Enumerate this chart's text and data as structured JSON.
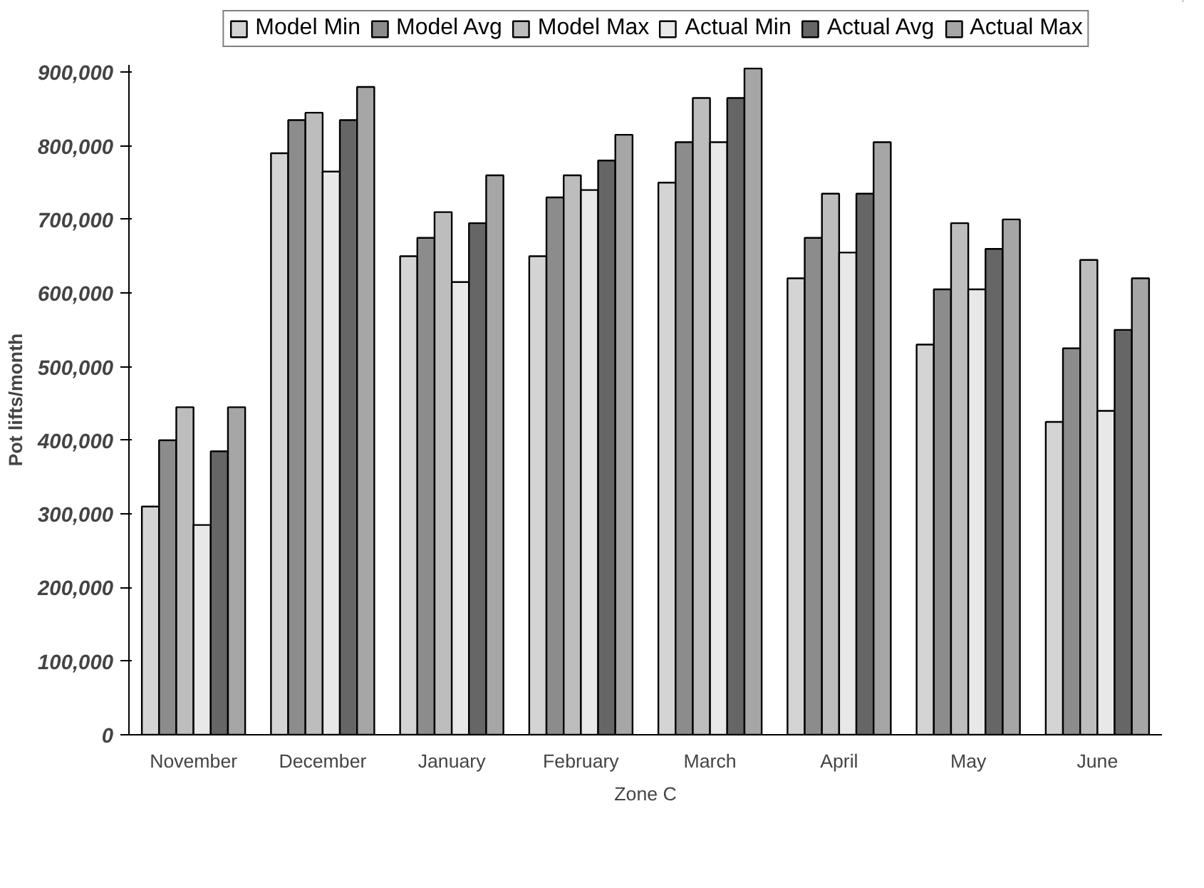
{
  "chart_data": {
    "type": "bar",
    "xlabel": "Zone C",
    "ylabel": "Pot lifts/month",
    "categories": [
      "November",
      "December",
      "January",
      "February",
      "March",
      "April",
      "May",
      "June"
    ],
    "series": [
      {
        "name": "Model Min",
        "color": "#d4d4d4",
        "values": [
          310000,
          790000,
          650000,
          650000,
          750000,
          620000,
          530000,
          425000
        ]
      },
      {
        "name": "Model Avg",
        "color": "#8c8c8c",
        "values": [
          400000,
          835000,
          675000,
          730000,
          805000,
          675000,
          605000,
          525000
        ]
      },
      {
        "name": "Model Max",
        "color": "#bdbdbd",
        "values": [
          445000,
          845000,
          710000,
          760000,
          865000,
          735000,
          695000,
          645000
        ]
      },
      {
        "name": "Actual Min",
        "color": "#e8e8e8",
        "values": [
          285000,
          765000,
          615000,
          740000,
          805000,
          655000,
          605000,
          440000
        ]
      },
      {
        "name": "Actual Avg",
        "color": "#666666",
        "values": [
          385000,
          835000,
          695000,
          780000,
          865000,
          735000,
          660000,
          550000
        ]
      },
      {
        "name": "Actual Max",
        "color": "#a6a6a6",
        "values": [
          445000,
          880000,
          760000,
          815000,
          905000,
          805000,
          700000,
          620000
        ]
      }
    ],
    "ylim": [
      0,
      910000
    ],
    "yticks": [
      {
        "value": 0,
        "label": "0"
      },
      {
        "value": 100000,
        "label": "100,000"
      },
      {
        "value": 200000,
        "label": "200,000"
      },
      {
        "value": 300000,
        "label": "300,000"
      },
      {
        "value": 400000,
        "label": "400,000"
      },
      {
        "value": 500000,
        "label": "500,000"
      },
      {
        "value": 600000,
        "label": "600,000"
      },
      {
        "value": 700000,
        "label": "700,000"
      },
      {
        "value": 800000,
        "label": "800,000"
      },
      {
        "value": 900000,
        "label": "900,000"
      }
    ],
    "grid": false,
    "legend": "top"
  }
}
